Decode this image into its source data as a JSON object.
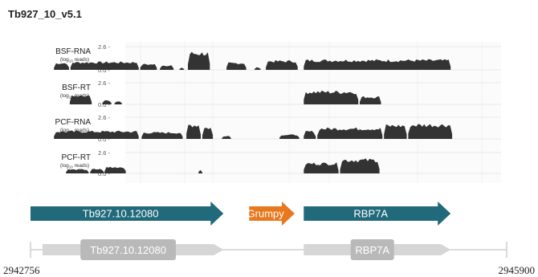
{
  "figure_title": "Tb927_10_v5.1",
  "tracks": [
    {
      "name": "BSF-RNA",
      "sub": "(log",
      "sub_idx": "10",
      "sub_tail": " reads)",
      "ticks": [
        "2.6 -",
        "0.0 -"
      ]
    },
    {
      "name": "BSF-RT",
      "sub": "(log",
      "sub_idx": "10",
      "sub_tail": " reads)",
      "ticks": [
        "2.6 -",
        "0.0 -"
      ]
    },
    {
      "name": "PCF-RNA",
      "sub": "(log",
      "sub_idx": "10",
      "sub_tail": " reads)",
      "ticks": [
        "2.6 -",
        "0.0 -"
      ]
    },
    {
      "name": "PCF-RT",
      "sub": "(log",
      "sub_idx": "10",
      "sub_tail": " reads)",
      "ticks": [
        "2.6 -",
        "0.0 -"
      ]
    }
  ],
  "chart_data": {
    "type": "area",
    "x_range": [
      2942756,
      2945900
    ],
    "ylim": [
      0.0,
      2.6
    ],
    "series": [
      {
        "name": "BSF-RNA",
        "segments": [
          {
            "x": [
              2942911,
              2943010
            ],
            "level": 0.85
          },
          {
            "x": [
              2943020,
              2943470
            ],
            "level": 0.95
          },
          {
            "x": [
              2943480,
              2943590
            ],
            "level": 0.7
          },
          {
            "x": [
              2943610,
              2943700
            ],
            "level": 0.55
          },
          {
            "x": [
              2943740,
              2943770
            ],
            "level": 0.3
          },
          {
            "x": [
              2943795,
              2943940
            ],
            "level": 2.1
          },
          {
            "x": [
              2944050,
              2944180
            ],
            "level": 0.85
          },
          {
            "x": [
              2944235,
              2944275
            ],
            "level": 0.3
          },
          {
            "x": [
              2944310,
              2944520
            ],
            "level": 1.1
          },
          {
            "x": [
              2944560,
              2945530
            ],
            "level": 1.2
          }
        ]
      },
      {
        "name": "BSF-RT",
        "segments": [
          {
            "x": [
              2943015,
              2943160
            ],
            "level": 1.1
          },
          {
            "x": [
              2943230,
              2943290
            ],
            "level": 0.5
          },
          {
            "x": [
              2943310,
              2943360
            ],
            "level": 0.4
          },
          {
            "x": [
              2944560,
              2944920
            ],
            "level": 1.7
          },
          {
            "x": [
              2944930,
              2945070
            ],
            "level": 1.0
          }
        ]
      },
      {
        "name": "PCF-RNA",
        "segments": [
          {
            "x": [
              2942911,
              2943470
            ],
            "level": 1.0
          },
          {
            "x": [
              2943490,
              2943760
            ],
            "level": 0.85
          },
          {
            "x": [
              2943785,
              2943880
            ],
            "level": 1.9
          },
          {
            "x": [
              2943890,
              2943960
            ],
            "level": 1.5
          },
          {
            "x": [
              2944020,
              2944080
            ],
            "level": 0.4
          },
          {
            "x": [
              2944400,
              2944530
            ],
            "level": 0.55
          },
          {
            "x": [
              2944560,
              2944640
            ],
            "level": 1.0
          },
          {
            "x": [
              2944650,
              2945080
            ],
            "level": 1.4
          },
          {
            "x": [
              2945090,
              2945240
            ],
            "level": 1.8
          },
          {
            "x": [
              2945250,
              2945540
            ],
            "level": 1.9
          }
        ]
      },
      {
        "name": "PCF-RT",
        "segments": [
          {
            "x": [
              2942990,
              2943140
            ],
            "level": 0.55
          },
          {
            "x": [
              2943150,
              2943240
            ],
            "level": 0.6
          },
          {
            "x": [
              2943245,
              2943385
            ],
            "level": 0.9
          },
          {
            "x": [
              2943865,
              2943890
            ],
            "level": 0.55
          },
          {
            "x": [
              2944560,
              2944790
            ],
            "level": 1.4
          },
          {
            "x": [
              2944800,
              2945060
            ],
            "level": 1.9
          }
        ]
      }
    ]
  },
  "genes_highlight": [
    {
      "label": "Tb927.10.12080",
      "start": 2942756,
      "end": 2944030,
      "color": "#216a7b"
    },
    {
      "label": "Grumpy",
      "start": 2944200,
      "end": 2944500,
      "color": "#e8781e"
    },
    {
      "label": "RBP7A",
      "start": 2944560,
      "end": 2945530,
      "color": "#216a7b"
    }
  ],
  "genes_annotation": [
    {
      "label": "Tb927.10.12080",
      "start": 2942835,
      "end": 2944030
    },
    {
      "label": "RBP7A",
      "start": 2944560,
      "end": 2945530
    }
  ],
  "coords": {
    "left": "2942756",
    "right": "2945900"
  }
}
